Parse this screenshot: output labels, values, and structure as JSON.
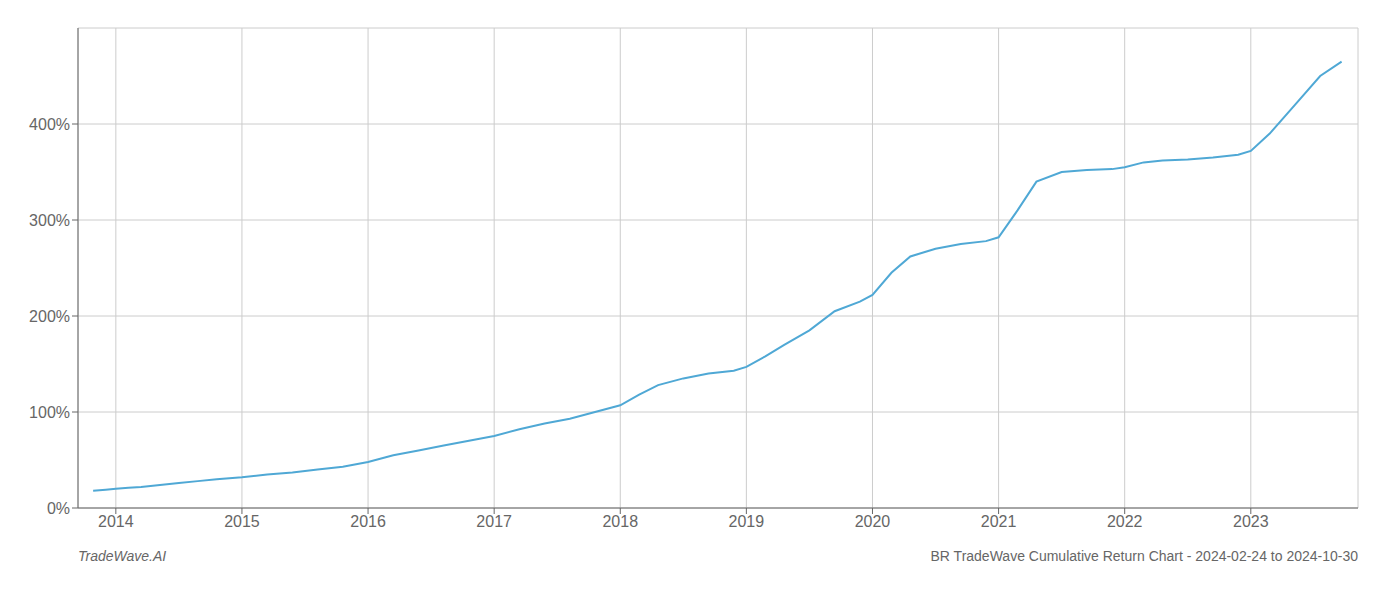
{
  "chart_data": {
    "type": "line",
    "annotations": [
      "TradeWave.AI",
      "BR TradeWave Cumulative Return Chart - 2024-02-24 to 2024-10-30"
    ],
    "x": [
      2013.82,
      2013.92,
      2014.0,
      2014.1,
      2014.2,
      2014.35,
      2014.5,
      2014.65,
      2014.8,
      2015.0,
      2015.2,
      2015.4,
      2015.6,
      2015.8,
      2016.0,
      2016.2,
      2016.4,
      2016.6,
      2016.8,
      2017.0,
      2017.2,
      2017.4,
      2017.6,
      2017.8,
      2018.0,
      2018.15,
      2018.3,
      2018.5,
      2018.7,
      2018.9,
      2019.0,
      2019.15,
      2019.3,
      2019.5,
      2019.7,
      2019.9,
      2020.0,
      2020.15,
      2020.3,
      2020.5,
      2020.7,
      2020.9,
      2021.0,
      2021.15,
      2021.3,
      2021.5,
      2021.7,
      2021.9,
      2022.0,
      2022.15,
      2022.3,
      2022.5,
      2022.7,
      2022.9,
      2023.0,
      2023.15,
      2023.35,
      2023.55,
      2023.72
    ],
    "values": [
      18,
      19,
      20,
      21,
      22,
      24,
      26,
      28,
      30,
      32,
      35,
      37,
      40,
      43,
      48,
      55,
      60,
      65,
      70,
      75,
      82,
      88,
      93,
      100,
      107,
      118,
      128,
      135,
      140,
      143,
      147,
      158,
      170,
      185,
      205,
      215,
      222,
      245,
      262,
      270,
      275,
      278,
      282,
      310,
      340,
      350,
      352,
      353,
      355,
      360,
      362,
      363,
      365,
      368,
      372,
      390,
      420,
      450,
      465
    ],
    "color": "#4fa8d5",
    "xlim": [
      2013.7,
      2023.85
    ],
    "ylim": [
      0,
      500
    ],
    "xticks": [
      2014,
      2015,
      2016,
      2017,
      2018,
      2019,
      2020,
      2021,
      2022,
      2023
    ],
    "yticks": [
      {
        "value": 0,
        "label": "0%"
      },
      {
        "value": 100,
        "label": "100%"
      },
      {
        "value": 200,
        "label": "200%"
      },
      {
        "value": 300,
        "label": "300%"
      },
      {
        "value": 400,
        "label": "400%"
      }
    ],
    "grid": true
  }
}
